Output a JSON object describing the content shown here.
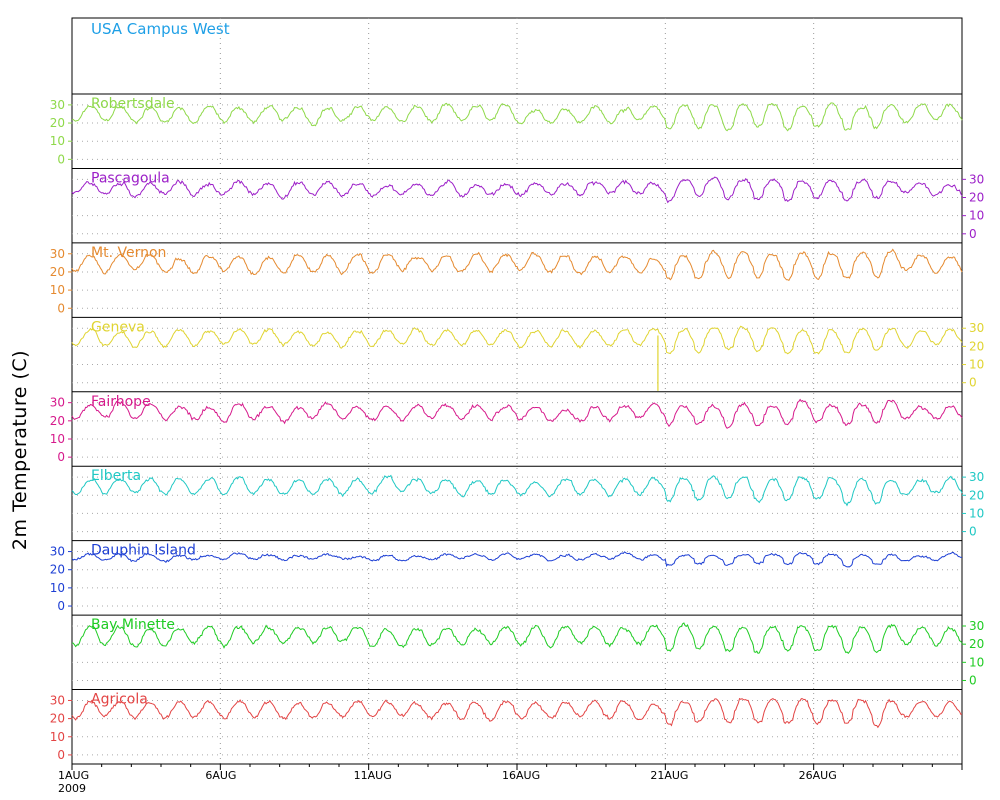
{
  "chart_data": {
    "type": "line",
    "title": "USA Campus West",
    "ylabel": "2m Temperature (C)",
    "x_ticks": [
      "1AUG\n2009",
      "6AUG",
      "11AUG",
      "16AUG",
      "21AUG",
      "26AUG"
    ],
    "x_range": [
      "2009-08-01",
      "2009-08-31"
    ],
    "ylim": [
      -5,
      36
    ],
    "yticks": [
      0,
      10,
      20,
      30
    ],
    "grid": true,
    "series": [
      {
        "name": "Robertsdale",
        "color": "#8fd94a",
        "axis": "left",
        "base": 25,
        "amp": 4.5,
        "noise": 1.2
      },
      {
        "name": "Pascagoula",
        "color": "#9c1fc8",
        "axis": "right",
        "base": 25,
        "amp": 3.5,
        "noise": 1.3
      },
      {
        "name": "Mt. Vernon",
        "color": "#e58a30",
        "axis": "left",
        "base": 25,
        "amp": 5.0,
        "noise": 1.2
      },
      {
        "name": "Geneva",
        "color": "#e0d431",
        "axis": "right",
        "base": 25,
        "amp": 4.5,
        "noise": 1.0
      },
      {
        "name": "Fairhope",
        "color": "#d61a8c",
        "axis": "left",
        "base": 25,
        "amp": 4.0,
        "noise": 1.3
      },
      {
        "name": "Elberta",
        "color": "#1fc8c4",
        "axis": "right",
        "base": 25,
        "amp": 4.5,
        "noise": 1.2
      },
      {
        "name": "Dauphin Island",
        "color": "#1d3fd4",
        "axis": "left",
        "base": 27,
        "amp": 1.5,
        "noise": 0.8
      },
      {
        "name": "Bay Minette",
        "color": "#1fcc23",
        "axis": "right",
        "base": 25,
        "amp": 5.0,
        "noise": 1.3
      },
      {
        "name": "Agricola",
        "color": "#e34444",
        "axis": "left",
        "base": 25,
        "amp": 4.5,
        "noise": 1.2
      }
    ]
  }
}
